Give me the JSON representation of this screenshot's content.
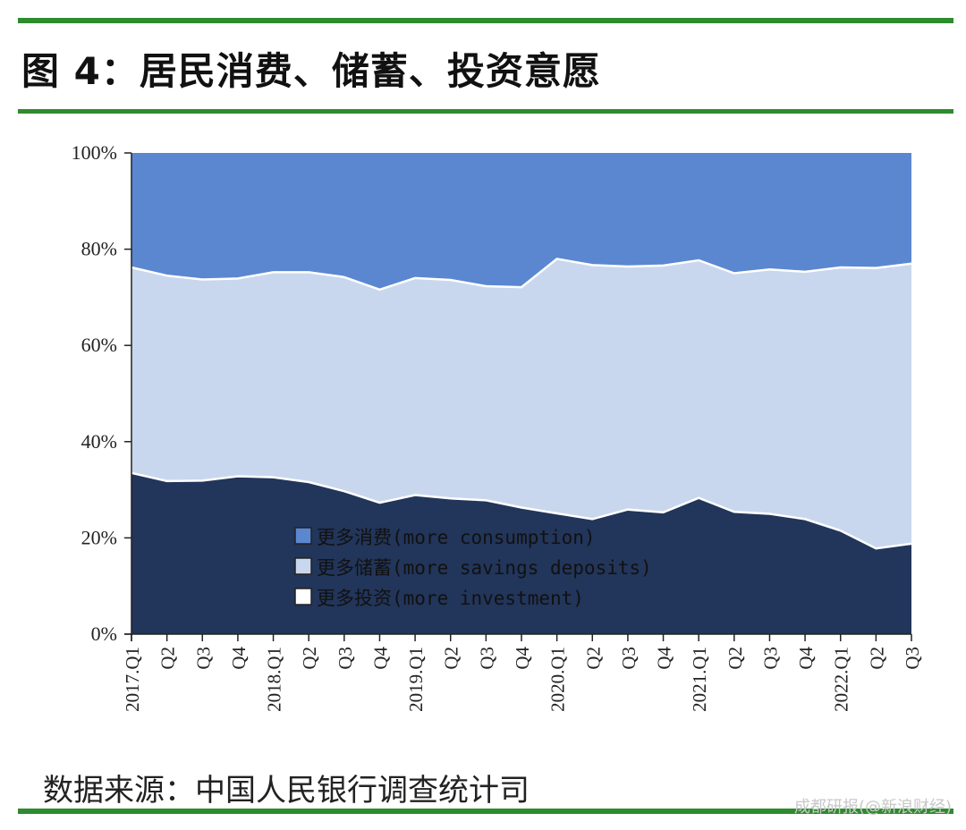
{
  "header": {
    "title": "图 4：居民消费、储蓄、投资意愿"
  },
  "footer": {
    "source": "数据来源：中国人民银行调查统计司",
    "watermark": "成都研报(@新浪财经)"
  },
  "colors": {
    "rule": "#2e8b2e",
    "consumption": "#5b87d1",
    "savings": "#c9d7ee",
    "investment": "#22355a"
  },
  "chart_data": {
    "type": "area",
    "stacked": true,
    "percent": true,
    "x": [
      "2017Q1",
      "Q2",
      "Q3",
      "Q4",
      "2018Q1",
      "Q2",
      "Q3",
      "Q4",
      "2019Q1",
      "Q2",
      "Q3",
      "Q4",
      "2020Q1",
      "Q2",
      "Q3",
      "Q4",
      "2021Q1",
      "Q2",
      "Q3",
      "Q4",
      "2022Q1",
      "Q2",
      "Q3"
    ],
    "x_tick_labels": [
      "2017.Q1",
      "Q2",
      "Q3",
      "Q4",
      "2018.Q1",
      "Q2",
      "Q3",
      "Q4",
      "2019.Q1",
      "Q2",
      "Q3",
      "Q4",
      "2020.Q1",
      "Q2",
      "Q3",
      "Q4",
      "2021.Q1",
      "Q2",
      "Q3",
      "Q4",
      "2022.Q1",
      "Q2",
      "Q3"
    ],
    "y_tick_labels": [
      "0%",
      "20%",
      "40%",
      "60%",
      "80%",
      "100%"
    ],
    "ylim": [
      0,
      100
    ],
    "series": [
      {
        "name": "更多投资(more investment)",
        "key": "investment",
        "values": [
          33.5,
          31.8,
          31.9,
          32.8,
          32.6,
          31.6,
          29.7,
          27.3,
          28.9,
          28.2,
          27.8,
          26.3,
          25.1,
          23.9,
          25.9,
          25.3,
          28.3,
          25.4,
          25.0,
          23.9,
          21.5,
          17.8,
          18.8
        ]
      },
      {
        "name": "更多储蓄(more savings deposits)",
        "key": "savings",
        "values": [
          42.7,
          42.7,
          41.8,
          41.1,
          42.6,
          43.6,
          44.5,
          44.3,
          45.1,
          45.4,
          44.5,
          45.8,
          52.9,
          52.8,
          50.5,
          51.3,
          49.4,
          49.6,
          50.8,
          51.4,
          54.7,
          58.3,
          58.2
        ]
      },
      {
        "name": "更多消费(more consumption)",
        "key": "consumption",
        "values": [
          23.8,
          25.5,
          26.3,
          26.1,
          24.8,
          24.8,
          25.8,
          28.4,
          26.0,
          26.4,
          27.7,
          27.9,
          22.0,
          23.3,
          23.6,
          23.4,
          22.3,
          25.0,
          24.2,
          24.7,
          23.8,
          23.9,
          23.0
        ]
      }
    ],
    "legend": {
      "position": "bottom-left inside plot",
      "order": [
        "consumption",
        "savings",
        "investment"
      ],
      "label_cn": [
        "更多消费",
        "更多储蓄",
        "更多投资"
      ],
      "label_en": [
        "(more consumption)",
        "(more savings deposits)",
        "(more investment)"
      ]
    }
  }
}
